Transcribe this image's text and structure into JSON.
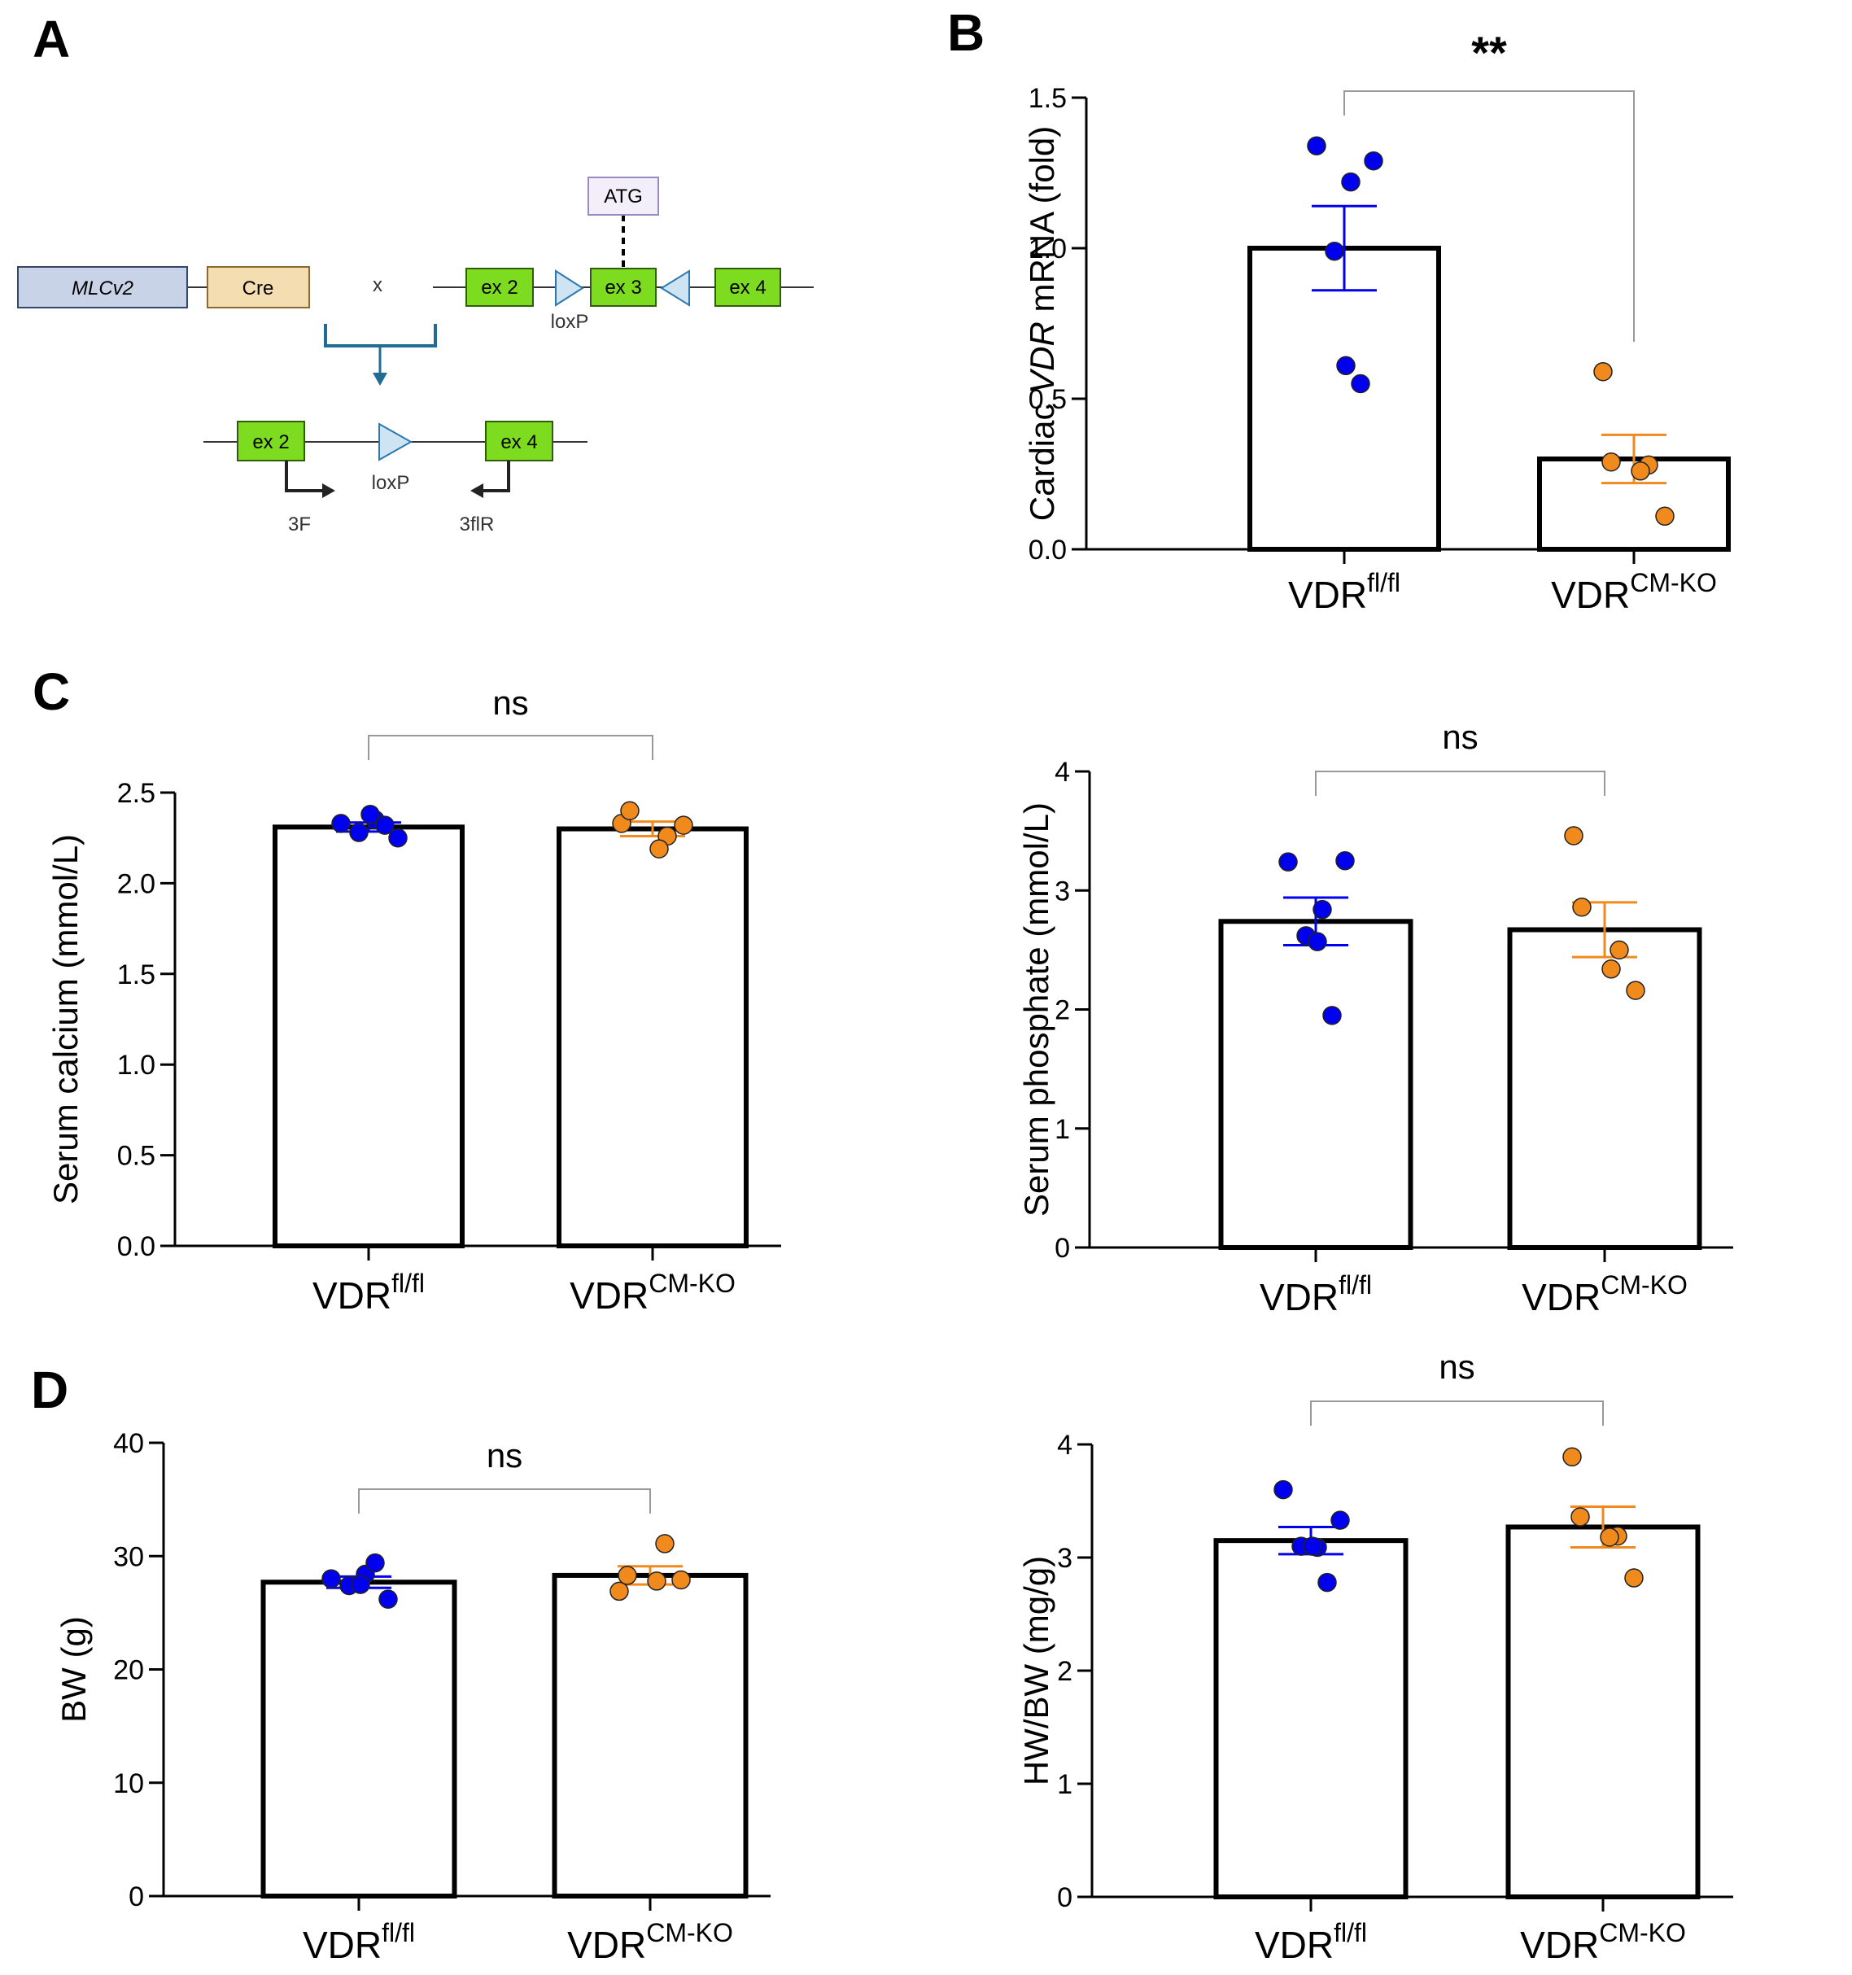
{
  "colors": {
    "flfl": "#0000ee",
    "cmko": "#f08a1c",
    "exon": "#7ddc1f",
    "mlc": "#c9d3e8",
    "cre": "#f4ddb0",
    "atg": "#f3effa",
    "loxp": "#cfe4f3",
    "arrow_blue": "#1f6c94"
  },
  "panel_labels": {
    "a": "A",
    "b": "B",
    "c": "C",
    "d": "D"
  },
  "diagram": {
    "mlc": "MLCv2",
    "cre": "Cre",
    "cross": "x",
    "atg": "ATG",
    "ex2": "ex 2",
    "ex3": "ex 3",
    "ex4": "ex 4",
    "loxp": "loxP",
    "primer_f": "3F",
    "primer_r": "3flR"
  },
  "chart_data": [
    {
      "id": "B",
      "type": "bar",
      "title": "",
      "ylabel_parts": [
        "Cardiac ",
        "VDR",
        " mRNA (fold)"
      ],
      "ylim": [
        0,
        1.5
      ],
      "yticks": [
        "0.0",
        "0.5",
        "1.0",
        "1.5"
      ],
      "categories": [
        {
          "base": "VDR",
          "sup": "fl/fl"
        },
        {
          "base": "VDR",
          "sup": "CM-KO"
        }
      ],
      "bars": [
        1.0,
        0.3
      ],
      "sem": [
        0.14,
        0.08
      ],
      "points": [
        [
          1.34,
          1.29,
          1.22,
          0.99,
          0.61,
          0.55
        ],
        [
          0.59,
          0.29,
          0.28,
          0.26,
          0.11
        ]
      ],
      "significance": "**"
    },
    {
      "id": "C-left",
      "type": "bar",
      "title": "",
      "ylabel_parts": [
        "Serum calcium (mmol/L)"
      ],
      "ylim": [
        0,
        2.5
      ],
      "yticks": [
        "0.0",
        "0.5",
        "1.0",
        "1.5",
        "2.0",
        "2.5"
      ],
      "categories": [
        {
          "base": "VDR",
          "sup": "fl/fl"
        },
        {
          "base": "VDR",
          "sup": "CM-KO"
        }
      ],
      "bars": [
        2.31,
        2.3
      ],
      "sem": [
        0.025,
        0.04
      ],
      "points": [
        [
          2.33,
          2.25,
          2.35,
          2.28,
          2.38,
          2.32
        ],
        [
          2.33,
          2.4,
          2.26,
          2.19,
          2.32
        ]
      ],
      "significance": "ns"
    },
    {
      "id": "C-right",
      "type": "bar",
      "title": "",
      "ylabel_parts": [
        "Serum phosphate (mmol/L)"
      ],
      "ylim": [
        0,
        4
      ],
      "yticks": [
        "0",
        "1",
        "2",
        "3",
        "4"
      ],
      "categories": [
        {
          "base": "VDR",
          "sup": "fl/fl"
        },
        {
          "base": "VDR",
          "sup": "CM-KO"
        }
      ],
      "bars": [
        2.74,
        2.67
      ],
      "sem": [
        0.2,
        0.23
      ],
      "points": [
        [
          3.24,
          3.25,
          2.84,
          2.62,
          2.57,
          1.95
        ],
        [
          3.46,
          2.86,
          2.5,
          2.34,
          2.16
        ]
      ],
      "significance": "ns"
    },
    {
      "id": "D-left",
      "type": "bar",
      "title": "",
      "ylabel_parts": [
        "BW (g)"
      ],
      "ylim": [
        0,
        40
      ],
      "yticks": [
        "0",
        "10",
        "20",
        "30",
        "40"
      ],
      "categories": [
        {
          "base": "VDR",
          "sup": "fl/fl"
        },
        {
          "base": "VDR",
          "sup": "CM-KO"
        }
      ],
      "bars": [
        27.7,
        28.3
      ],
      "sem": [
        0.5,
        0.8
      ],
      "points": [
        [
          28.0,
          26.2,
          28.4,
          27.4,
          27.5,
          29.4
        ],
        [
          26.9,
          28.3,
          31.1,
          27.8,
          27.9
        ]
      ],
      "significance": "ns"
    },
    {
      "id": "D-right",
      "type": "bar",
      "title": "",
      "ylabel_parts": [
        "HW/BW (mg/g)"
      ],
      "ylim": [
        0,
        4
      ],
      "yticks": [
        "0",
        "1",
        "2",
        "3",
        "4"
      ],
      "categories": [
        {
          "base": "VDR",
          "sup": "fl/fl"
        },
        {
          "base": "VDR",
          "sup": "CM-KO"
        }
      ],
      "bars": [
        3.15,
        3.27
      ],
      "sem": [
        0.12,
        0.18
      ],
      "points": [
        [
          3.6,
          3.33,
          3.09,
          3.1,
          3.1,
          2.78
        ],
        [
          3.89,
          3.36,
          3.19,
          3.18,
          2.82
        ]
      ],
      "significance": "ns"
    }
  ]
}
